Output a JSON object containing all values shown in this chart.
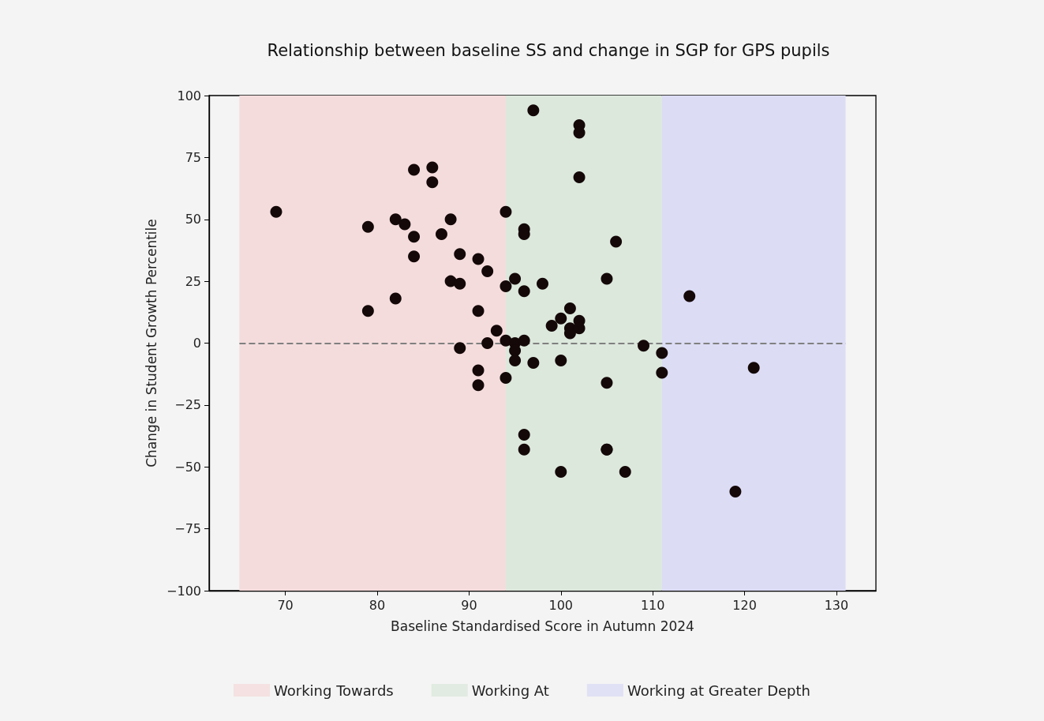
{
  "chart_data": {
    "type": "scatter",
    "title": "Relationship between baseline SS and change in SGP for GPS pupils",
    "xlabel": "Baseline Standardised Score in Autumn 2024",
    "ylabel": "Change in Student Growth Percentile",
    "series": [
      {
        "color": "#140808",
        "x": [
          69,
          79,
          79,
          82,
          82,
          83,
          84,
          84,
          84,
          86,
          86,
          87,
          88,
          88,
          89,
          89,
          89,
          91,
          91,
          91,
          91,
          92,
          92,
          93,
          94,
          94,
          94,
          94,
          95,
          95,
          95,
          95,
          96,
          96,
          96,
          96,
          96,
          96,
          97,
          97,
          98,
          99,
          100,
          100,
          100,
          101,
          101,
          101,
          102,
          102,
          102,
          102,
          102,
          105,
          105,
          105,
          105,
          106,
          107,
          109,
          111,
          111,
          114,
          119,
          121
        ],
        "values": [
          53,
          47,
          13,
          50,
          18,
          48,
          70,
          43,
          35,
          71,
          65,
          44,
          50,
          25,
          36,
          24,
          -2,
          34,
          13,
          -11,
          -17,
          29,
          0,
          5,
          53,
          23,
          1,
          -14,
          26,
          0,
          -3,
          -7,
          46,
          44,
          21,
          1,
          -37,
          -43,
          94,
          -8,
          24,
          7,
          10,
          -7,
          -52,
          14,
          6,
          4,
          88,
          85,
          67,
          9,
          6,
          26,
          -16,
          -43,
          -43,
          41,
          -52,
          -1,
          -4,
          -12,
          19,
          -60,
          -10
        ]
      }
    ],
    "marker": "circle",
    "grid": false,
    "legend": "bottom",
    "xlim": [
      61.7,
      134.3
    ],
    "xticks": [
      70,
      80,
      90,
      100,
      110,
      120,
      130
    ],
    "ylim": [
      -100,
      100
    ],
    "yticks": [
      {
        "value": -100,
        "label": "−100"
      },
      {
        "value": -75,
        "label": "−75"
      },
      {
        "value": -50,
        "label": "−50"
      },
      {
        "value": -25,
        "label": "−25"
      },
      0,
      25,
      50,
      75,
      100
    ],
    "ref_lines": [
      {
        "axis": "y",
        "value": 0,
        "color": "#808080",
        "line_style": "dashed"
      }
    ],
    "bands": [
      {
        "axis": "x",
        "from": 65,
        "to": 94,
        "label": "Working Towards",
        "color": "#f5dcdc"
      },
      {
        "axis": "x",
        "from": 94,
        "to": 111,
        "label": "Working At",
        "color": "#dce8dc"
      },
      {
        "axis": "x",
        "from": 111,
        "to": 131,
        "label": "Working at Greater Depth",
        "color": "#dcdcf5"
      }
    ]
  }
}
